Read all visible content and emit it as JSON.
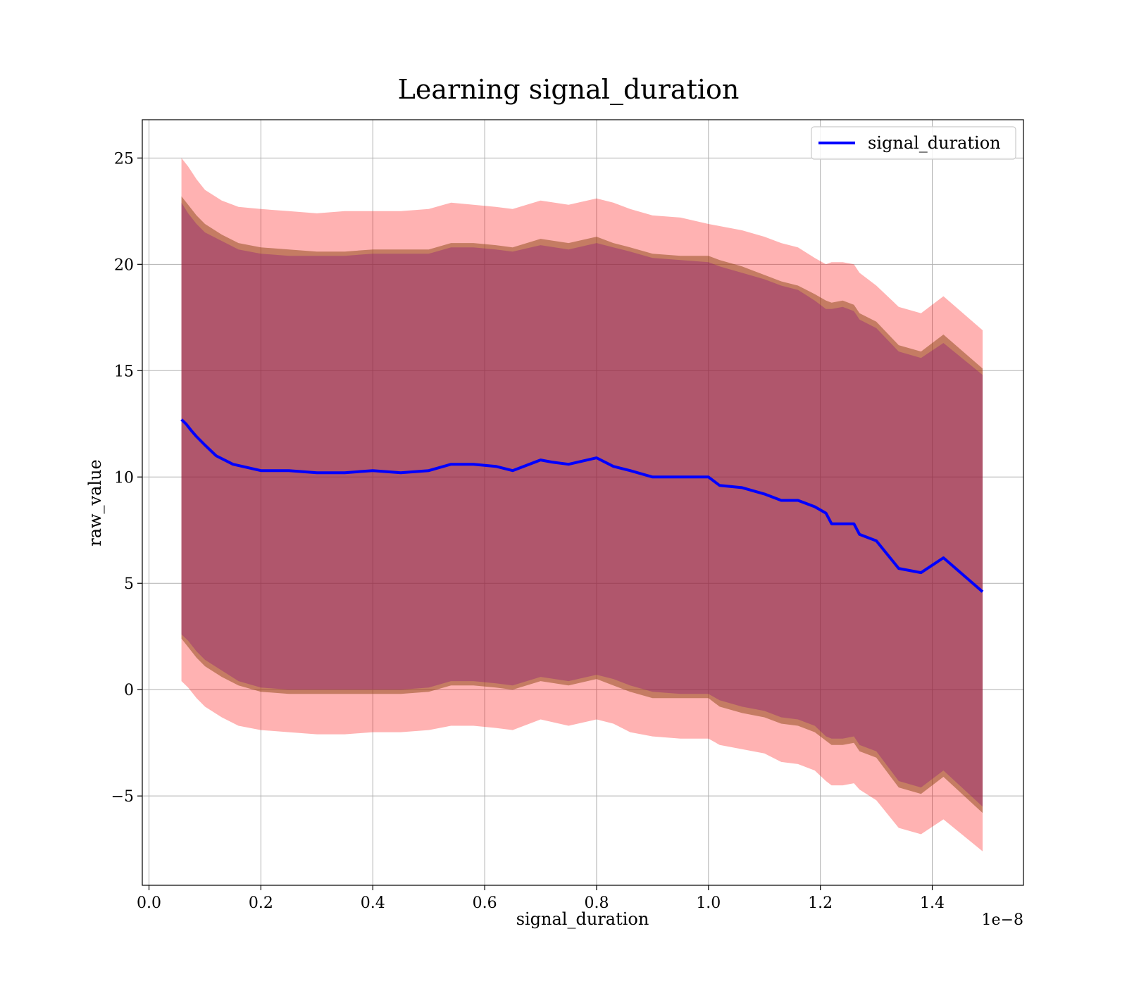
{
  "chart_data": {
    "type": "line",
    "title": "Learning signal_duration",
    "xlabel": "signal_duration",
    "ylabel": "raw_value",
    "x_offset_text": "1e−8",
    "xlim": [
      -0.012,
      1.563
    ],
    "ylim": [
      -9.2,
      26.8
    ],
    "x_ticks": [
      0.0,
      0.2,
      0.4,
      0.6,
      0.8,
      1.0,
      1.2,
      1.4
    ],
    "x_tick_labels": [
      "0.0",
      "0.2",
      "0.4",
      "0.6",
      "0.8",
      "1.0",
      "1.2",
      "1.4"
    ],
    "y_ticks": [
      -5,
      0,
      5,
      10,
      15,
      20,
      25
    ],
    "y_tick_labels": [
      "−5",
      "0",
      "5",
      "10",
      "15",
      "20",
      "25"
    ],
    "grid": true,
    "legend_position": "top-right",
    "colors": {
      "line": "#0000ff",
      "band_outer": "#ff0000",
      "band_middle": "#8b4513",
      "band_inner": "#800080",
      "grid": "#b0b0b0"
    },
    "series": [
      {
        "name": "signal_duration",
        "x": [
          0.058,
          0.066,
          0.075,
          0.085,
          0.1,
          0.12,
          0.15,
          0.2,
          0.25,
          0.3,
          0.35,
          0.4,
          0.45,
          0.5,
          0.54,
          0.58,
          0.62,
          0.65,
          0.7,
          0.72,
          0.75,
          0.8,
          0.83,
          0.86,
          0.9,
          0.95,
          1.0,
          1.02,
          1.06,
          1.1,
          1.13,
          1.16,
          1.19,
          1.21,
          1.22,
          1.24,
          1.26,
          1.27,
          1.3,
          1.34,
          1.38,
          1.42,
          1.49
        ],
        "y": [
          12.7,
          12.5,
          12.2,
          11.9,
          11.5,
          11.0,
          10.6,
          10.3,
          10.3,
          10.2,
          10.2,
          10.3,
          10.2,
          10.3,
          10.6,
          10.6,
          10.5,
          10.3,
          10.8,
          10.7,
          10.6,
          10.9,
          10.5,
          10.3,
          10.0,
          10.0,
          10.0,
          9.6,
          9.5,
          9.2,
          8.9,
          8.9,
          8.6,
          8.3,
          7.8,
          7.8,
          7.8,
          7.3,
          7.0,
          5.7,
          5.5,
          6.2,
          4.6
        ]
      }
    ],
    "bands": [
      {
        "role": "outer",
        "x": [
          0.058,
          0.07,
          0.085,
          0.1,
          0.13,
          0.16,
          0.2,
          0.25,
          0.3,
          0.35,
          0.4,
          0.45,
          0.5,
          0.54,
          0.58,
          0.62,
          0.65,
          0.7,
          0.75,
          0.8,
          0.83,
          0.86,
          0.9,
          0.95,
          1.0,
          1.02,
          1.06,
          1.1,
          1.13,
          1.16,
          1.19,
          1.21,
          1.22,
          1.24,
          1.26,
          1.27,
          1.3,
          1.34,
          1.38,
          1.42,
          1.49
        ],
        "upper": [
          25.0,
          24.6,
          24.0,
          23.5,
          23.0,
          22.7,
          22.6,
          22.5,
          22.4,
          22.5,
          22.5,
          22.5,
          22.6,
          22.9,
          22.8,
          22.7,
          22.6,
          23.0,
          22.8,
          23.1,
          22.9,
          22.6,
          22.3,
          22.2,
          21.9,
          21.8,
          21.6,
          21.3,
          21.0,
          20.8,
          20.3,
          20.0,
          20.1,
          20.1,
          20.0,
          19.6,
          19.0,
          18.0,
          17.7,
          18.5,
          16.9
        ],
        "lower": [
          0.4,
          0.1,
          -0.4,
          -0.8,
          -1.3,
          -1.7,
          -1.9,
          -2.0,
          -2.1,
          -2.1,
          -2.0,
          -2.0,
          -1.9,
          -1.7,
          -1.7,
          -1.8,
          -1.9,
          -1.4,
          -1.7,
          -1.4,
          -1.6,
          -2.0,
          -2.2,
          -2.3,
          -2.3,
          -2.6,
          -2.8,
          -3.0,
          -3.4,
          -3.5,
          -3.8,
          -4.3,
          -4.5,
          -4.5,
          -4.4,
          -4.7,
          -5.2,
          -6.5,
          -6.8,
          -6.1,
          -7.6
        ]
      },
      {
        "role": "middle",
        "x": [
          0.058,
          0.07,
          0.085,
          0.1,
          0.13,
          0.16,
          0.2,
          0.25,
          0.3,
          0.35,
          0.4,
          0.45,
          0.5,
          0.54,
          0.58,
          0.62,
          0.65,
          0.7,
          0.75,
          0.8,
          0.83,
          0.86,
          0.9,
          0.95,
          1.0,
          1.02,
          1.06,
          1.1,
          1.13,
          1.16,
          1.19,
          1.21,
          1.22,
          1.24,
          1.26,
          1.27,
          1.3,
          1.34,
          1.38,
          1.42,
          1.49
        ],
        "upper": [
          23.2,
          22.8,
          22.3,
          21.9,
          21.4,
          21.0,
          20.8,
          20.7,
          20.6,
          20.6,
          20.7,
          20.7,
          20.7,
          21.0,
          21.0,
          20.9,
          20.8,
          21.2,
          21.0,
          21.3,
          21.0,
          20.8,
          20.5,
          20.4,
          20.4,
          20.2,
          19.9,
          19.5,
          19.2,
          19.0,
          18.6,
          18.3,
          18.2,
          18.3,
          18.1,
          17.7,
          17.3,
          16.2,
          15.9,
          16.7,
          15.1
        ],
        "lower": [
          2.4,
          2.0,
          1.5,
          1.1,
          0.6,
          0.2,
          -0.1,
          -0.2,
          -0.2,
          -0.2,
          -0.2,
          -0.2,
          -0.1,
          0.2,
          0.2,
          0.1,
          0.0,
          0.4,
          0.2,
          0.5,
          0.2,
          -0.1,
          -0.4,
          -0.4,
          -0.4,
          -0.8,
          -1.1,
          -1.3,
          -1.6,
          -1.7,
          -2.0,
          -2.4,
          -2.6,
          -2.6,
          -2.5,
          -2.9,
          -3.2,
          -4.6,
          -4.9,
          -4.1,
          -5.8
        ]
      },
      {
        "role": "inner",
        "x": [
          0.058,
          0.07,
          0.085,
          0.1,
          0.13,
          0.16,
          0.2,
          0.25,
          0.3,
          0.35,
          0.4,
          0.45,
          0.5,
          0.54,
          0.58,
          0.62,
          0.65,
          0.7,
          0.75,
          0.8,
          0.83,
          0.86,
          0.9,
          0.95,
          1.0,
          1.02,
          1.06,
          1.1,
          1.13,
          1.16,
          1.19,
          1.21,
          1.22,
          1.24,
          1.26,
          1.27,
          1.3,
          1.34,
          1.38,
          1.42,
          1.49
        ],
        "upper": [
          22.9,
          22.4,
          21.9,
          21.5,
          21.1,
          20.7,
          20.5,
          20.4,
          20.4,
          20.4,
          20.5,
          20.5,
          20.5,
          20.8,
          20.8,
          20.7,
          20.6,
          20.9,
          20.7,
          21.0,
          20.8,
          20.6,
          20.3,
          20.2,
          20.1,
          19.9,
          19.6,
          19.3,
          19.0,
          18.8,
          18.3,
          17.9,
          17.9,
          18.0,
          17.8,
          17.4,
          17.0,
          15.9,
          15.6,
          16.3,
          14.8
        ],
        "lower": [
          2.6,
          2.3,
          1.8,
          1.4,
          0.9,
          0.4,
          0.1,
          0.0,
          0.0,
          0.0,
          0.0,
          0.0,
          0.1,
          0.4,
          0.4,
          0.3,
          0.2,
          0.6,
          0.4,
          0.7,
          0.5,
          0.2,
          -0.1,
          -0.2,
          -0.2,
          -0.5,
          -0.8,
          -1.0,
          -1.3,
          -1.4,
          -1.7,
          -2.2,
          -2.3,
          -2.3,
          -2.2,
          -2.6,
          -2.9,
          -4.3,
          -4.6,
          -3.8,
          -5.5
        ]
      }
    ]
  }
}
